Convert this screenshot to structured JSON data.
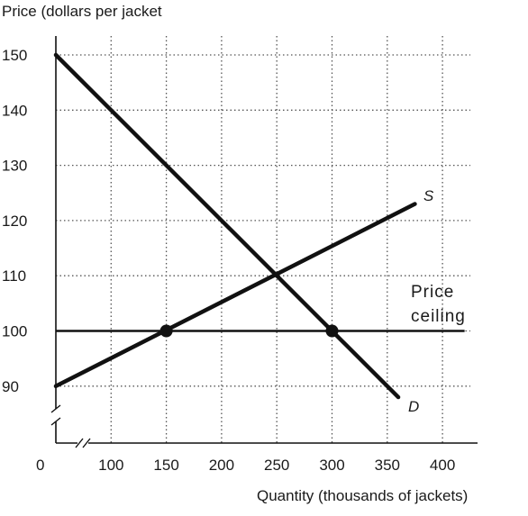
{
  "chart_data": {
    "type": "line",
    "ylabel": "Price (dollars per jacket",
    "xlabel": "Quantity (thousands of jackets)",
    "origin_label": "0",
    "x_ticks": [
      100,
      150,
      200,
      250,
      300,
      350,
      400
    ],
    "y_ticks": [
      90,
      100,
      110,
      120,
      130,
      140,
      150
    ],
    "xlim": [
      50,
      430
    ],
    "ylim": [
      80,
      155
    ],
    "axis_breaks": [
      "x",
      "y"
    ],
    "grid": true,
    "series": [
      {
        "name": "D",
        "points": [
          [
            50,
            150
          ],
          [
            360,
            88
          ]
        ]
      },
      {
        "name": "S",
        "points": [
          [
            50,
            90
          ],
          [
            375,
            123
          ]
        ]
      }
    ],
    "price_ceiling": {
      "value": 100,
      "x_start": 50,
      "x_end": 420,
      "label_line1": "Price",
      "label_line2": "ceiling"
    },
    "highlight_points": [
      [
        150,
        100
      ],
      [
        300,
        100
      ]
    ],
    "colors": {
      "line": "#111111",
      "grid": "#555555"
    }
  }
}
